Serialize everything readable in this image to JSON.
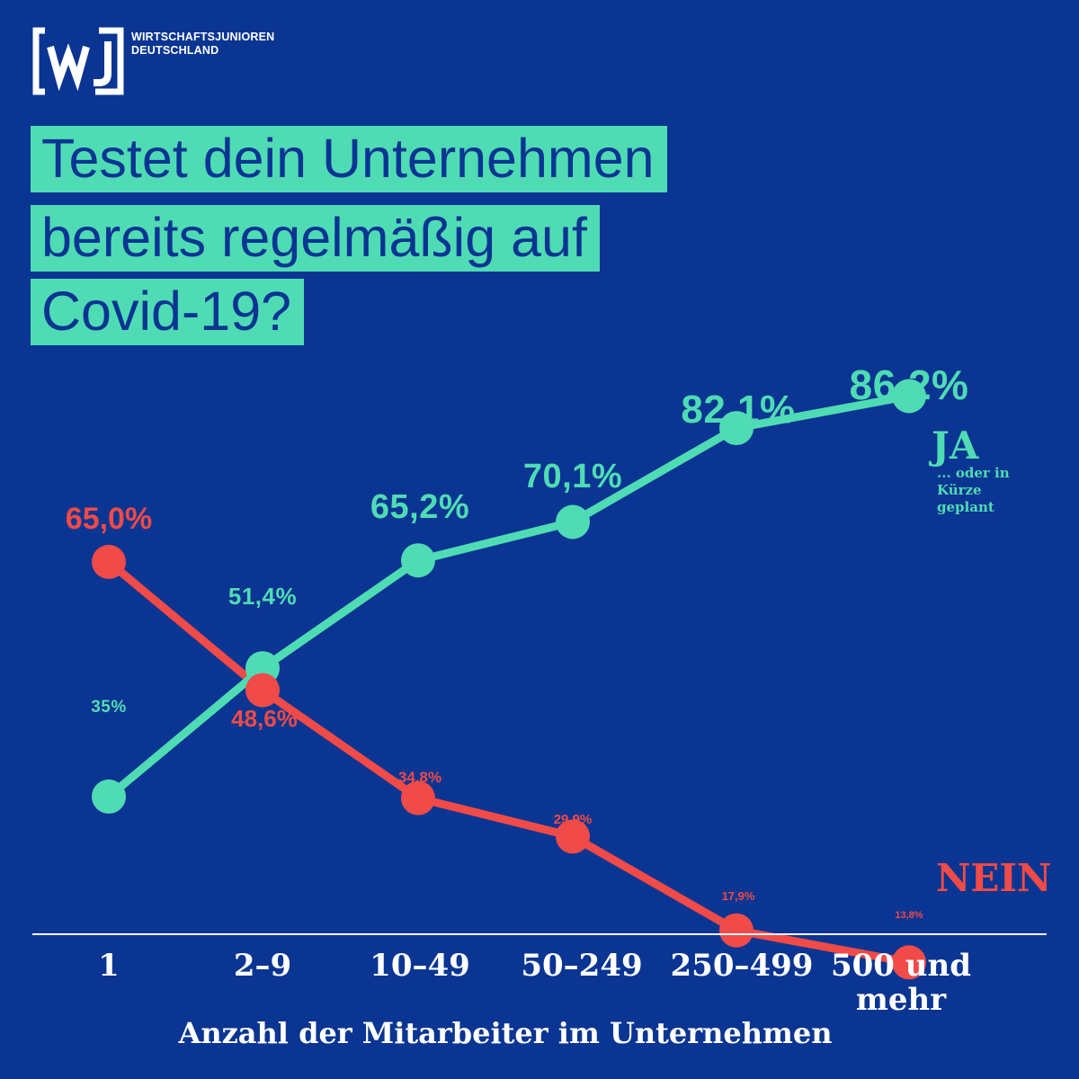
{
  "brand": {
    "name_line1": "WIRTSCHAFTSJUNIOREN",
    "name_line2": "DEUTSCHLAND",
    "logo_letters": "[wJ]"
  },
  "title_lines": [
    "Testet dein Unternehmen",
    "bereits regelmäßig auf",
    "Covid-19?"
  ],
  "colors": {
    "background": "#0a3592",
    "ja": "#4fdcb4",
    "nein": "#f04b48",
    "axis": "#ffffff"
  },
  "chart_data": {
    "type": "line",
    "title": "Testet dein Unternehmen bereits regelmäßig auf Covid-19?",
    "xlabel": "Anzahl der Mitarbeiter im Unternehmen",
    "ylabel": "",
    "ylim": [
      10,
      90
    ],
    "grid": false,
    "categories": [
      "1",
      "2–9",
      "10–49",
      "50–249",
      "250–499",
      "500 und mehr"
    ],
    "category_lines": [
      [
        "1"
      ],
      [
        "2–9"
      ],
      [
        "10–49"
      ],
      [
        "50–249"
      ],
      [
        "250–499"
      ],
      [
        "500 und",
        "mehr"
      ]
    ],
    "series": [
      {
        "name": "JA",
        "note_lines": [
          "... oder in",
          "Kürze",
          "geplant"
        ],
        "values": [
          35,
          51.4,
          65.2,
          70.1,
          82.1,
          86.2
        ],
        "labels": [
          "35%",
          "51,4%",
          "65,2%",
          "70,1%",
          "82,1%",
          "86,2%"
        ]
      },
      {
        "name": "NEIN",
        "values": [
          65.0,
          48.6,
          34.8,
          29.9,
          17.9,
          13.8
        ],
        "labels": [
          "65,0%",
          "48,6%",
          "34,8%",
          "29,9%",
          "17,9%",
          "13,8%"
        ]
      }
    ]
  }
}
